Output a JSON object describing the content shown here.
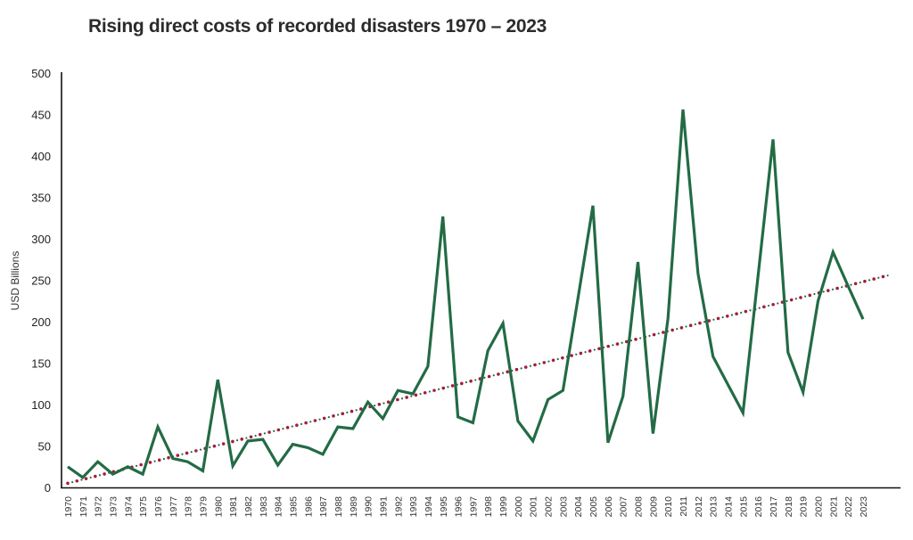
{
  "chart_data": {
    "type": "line",
    "title": "Rising direct costs of recorded disasters 1970 – 2023",
    "xlabel": "",
    "ylabel": "USD Billions",
    "ylim": [
      0,
      500
    ],
    "yticks": [
      "0",
      "50",
      "100",
      "150",
      "200",
      "250",
      "300",
      "350",
      "400",
      "450",
      "500"
    ],
    "grid": false,
    "legend": "none",
    "categories": [
      "1970",
      "1971",
      "1972",
      "1973",
      "1974",
      "1975",
      "1976",
      "1977",
      "1978",
      "1979",
      "1980",
      "1981",
      "1982",
      "1983",
      "1984",
      "1985",
      "1986",
      "1987",
      "1988",
      "1989",
      "1990",
      "1991",
      "1992",
      "1993",
      "1994",
      "1995",
      "1996",
      "1997",
      "1998",
      "1999",
      "2000",
      "2001",
      "2002",
      "2003",
      "2004",
      "2005",
      "2006",
      "2007",
      "2008",
      "2009",
      "2010",
      "2011",
      "2012",
      "2013",
      "2014",
      "2015",
      "2016",
      "2017",
      "2018",
      "2019",
      "2020",
      "2021",
      "2022",
      "2023"
    ],
    "series": [
      {
        "name": "Direct costs",
        "color": "#236b45",
        "values": [
          25,
          12,
          31,
          16,
          25,
          16,
          73,
          35,
          31,
          20,
          130,
          26,
          56,
          58,
          27,
          52,
          48,
          40,
          73,
          71,
          103,
          83,
          117,
          113,
          146,
          327,
          85,
          78,
          165,
          198,
          80,
          56,
          106,
          117,
          228,
          340,
          54,
          110,
          272,
          65,
          204,
          456,
          258,
          158,
          124,
          90,
          255,
          420,
          163,
          115,
          225,
          284,
          243,
          203
        ]
      }
    ],
    "trendline": {
      "type": "linear",
      "color": "#a31d3a",
      "dot_color": "#236b45",
      "start": {
        "x": 1970,
        "y": 5
      },
      "end": {
        "x": 2024.7,
        "y": 256
      }
    }
  }
}
